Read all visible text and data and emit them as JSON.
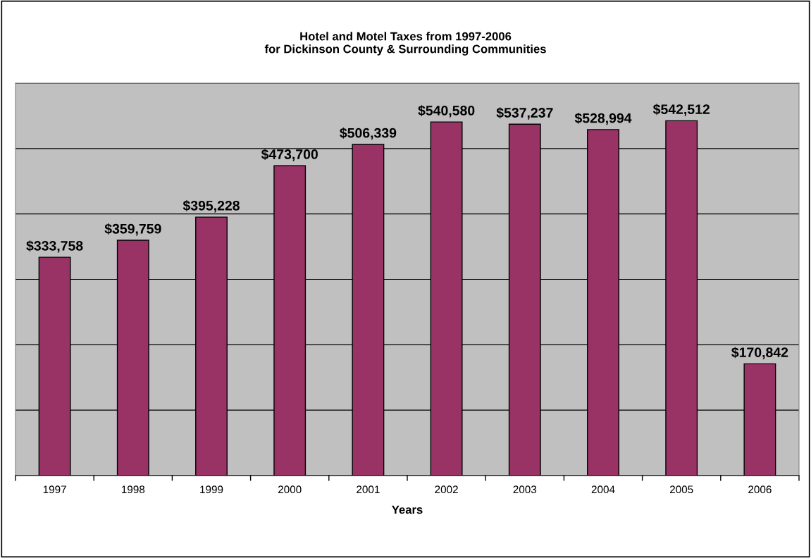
{
  "chart_data": {
    "type": "bar",
    "title": "Hotel and Motel Taxes from 1997-2006\nfor Dickinson County & Surrounding Communities",
    "xlabel": "Years",
    "categories": [
      "1997",
      "1998",
      "1999",
      "2000",
      "2001",
      "2002",
      "2003",
      "2004",
      "2005",
      "2006"
    ],
    "values": [
      333758,
      359759,
      395228,
      473700,
      506339,
      540580,
      537237,
      528994,
      542512,
      170842
    ],
    "value_labels": [
      "$333,758",
      "$359,759",
      "$395,228",
      "$473,700",
      "$506,339",
      "$540,580",
      "$537,237",
      "$528,994",
      "$542,512",
      "$170,842"
    ],
    "color": "#993366",
    "ylim": [
      0,
      600000
    ],
    "yticks": [
      {
        "value": 0,
        "label": null
      },
      {
        "value": 100000,
        "label": null
      },
      {
        "value": 200000,
        "label": null
      },
      {
        "value": 300000,
        "label": null
      },
      {
        "value": 400000,
        "label": null
      },
      {
        "value": 500000,
        "label": null
      },
      {
        "value": 600000,
        "label": null
      }
    ],
    "grid": "y",
    "tick_labels": "x"
  }
}
